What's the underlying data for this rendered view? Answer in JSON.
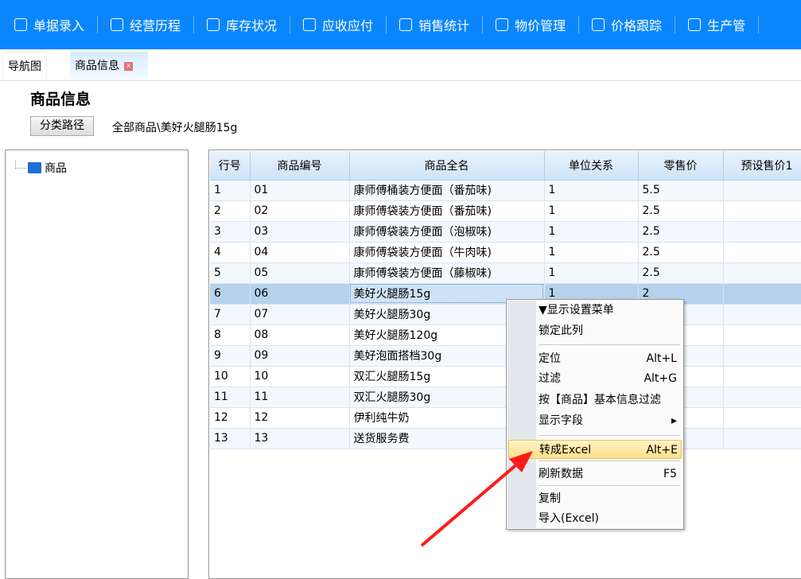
{
  "toolbar": {
    "items": [
      {
        "label": "单据录入",
        "icon": "edit-icon"
      },
      {
        "label": "经营历程",
        "icon": "chart-circle-icon"
      },
      {
        "label": "库存状况",
        "icon": "inventory-icon"
      },
      {
        "label": "应收应付",
        "icon": "money-icon"
      },
      {
        "label": "销售统计",
        "icon": "sales-icon"
      },
      {
        "label": "物价管理",
        "icon": "yen-icon"
      },
      {
        "label": "价格跟踪",
        "icon": "track-icon"
      },
      {
        "label": "生产管",
        "icon": "doc-icon"
      }
    ]
  },
  "tabs": [
    {
      "label": "导航图"
    },
    {
      "label": "商品信息",
      "close": "x"
    }
  ],
  "page": {
    "title": "商品信息",
    "path_button": "分类路径",
    "path": "全部商品\\美好火腿肠15g"
  },
  "tree": {
    "root": "商品"
  },
  "grid": {
    "columns": [
      "行号",
      "商品编号",
      "商品全名",
      "单位关系",
      "零售价",
      "预设售价1"
    ],
    "rows": [
      [
        "1",
        "01",
        "康师傅桶装方便面（番茄味)",
        "1",
        "5.5",
        ""
      ],
      [
        "2",
        "02",
        "康师傅袋装方便面（番茄味)",
        "1",
        "2.5",
        ""
      ],
      [
        "3",
        "03",
        "康师傅袋装方便面（泡椒味)",
        "1",
        "2.5",
        ""
      ],
      [
        "4",
        "04",
        "康师傅袋装方便面（牛肉味)",
        "1",
        "2.5",
        ""
      ],
      [
        "5",
        "05",
        "康师傅袋装方便面（藤椒味)",
        "1",
        "2.5",
        ""
      ],
      [
        "6",
        "06",
        "美好火腿肠15g",
        "1",
        "2",
        ""
      ],
      [
        "7",
        "07",
        "美好火腿肠30g",
        "",
        "",
        ""
      ],
      [
        "8",
        "08",
        "美好火腿肠120g",
        "",
        "",
        ""
      ],
      [
        "9",
        "09",
        "美好泡面搭档30g",
        "",
        "",
        ""
      ],
      [
        "10",
        "10",
        "双汇火腿肠15g",
        "",
        "",
        ""
      ],
      [
        "11",
        "11",
        "双汇火腿肠30g",
        "",
        "",
        ""
      ],
      [
        "12",
        "12",
        "伊利纯牛奶",
        "",
        "",
        ""
      ],
      [
        "13",
        "13",
        "送货服务费",
        "",
        "",
        ""
      ]
    ],
    "selected_row": 6
  },
  "context_menu": {
    "items": [
      {
        "label": "▼显示设置菜单",
        "shortcut": ""
      },
      {
        "label": "锁定此列",
        "shortcut": ""
      },
      {
        "label": "定位",
        "shortcut": "Alt+L"
      },
      {
        "label": "过滤",
        "shortcut": "Alt+G"
      },
      {
        "label": "按【商品】基本信息过滤",
        "shortcut": ""
      },
      {
        "label": "显示字段",
        "shortcut": "▸"
      },
      {
        "label": "转成Excel",
        "shortcut": "Alt+E"
      },
      {
        "label": "刷新数据",
        "shortcut": "F5"
      },
      {
        "label": "复制",
        "shortcut": ""
      },
      {
        "label": "导入(Excel)",
        "shortcut": ""
      }
    ],
    "highlighted": "转成Excel"
  },
  "colors": {
    "toolbar": "#0a86fc",
    "selection": "#b6d1ec",
    "arrow": "#ff1a1a"
  }
}
